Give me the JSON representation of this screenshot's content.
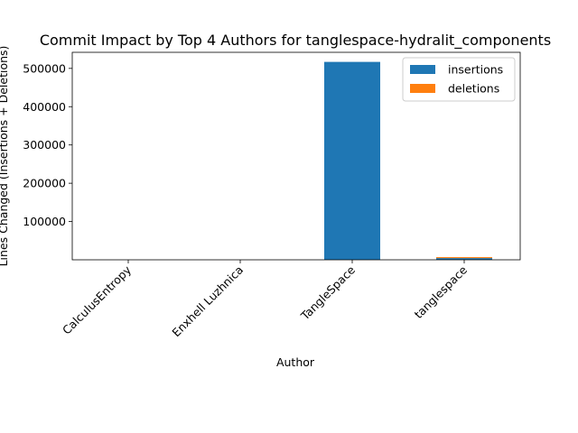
{
  "chart_data": {
    "type": "bar",
    "stacked": true,
    "title": "Commit Impact by Top 4 Authors for tanglespace-hydralit_components",
    "xlabel": "Author",
    "ylabel": "Lines Changed (Insertions + Deletions)",
    "categories": [
      "CalculusEntropy",
      "Enxhell Luzhnica",
      "TangleSpace",
      "tanglespace"
    ],
    "series": [
      {
        "name": "insertions",
        "color": "#1f77b4",
        "values": [
          20,
          10,
          517000,
          4500
        ]
      },
      {
        "name": "deletions",
        "color": "#ff7f0e",
        "values": [
          5,
          2,
          0,
          2500
        ]
      }
    ],
    "yticks": [
      100000,
      200000,
      300000,
      400000,
      500000
    ],
    "ytick_labels": [
      "100000",
      "200000",
      "300000",
      "400000",
      "500000"
    ],
    "ylim": [
      0,
      542000
    ],
    "grid": false,
    "legend_position": "top-right"
  }
}
